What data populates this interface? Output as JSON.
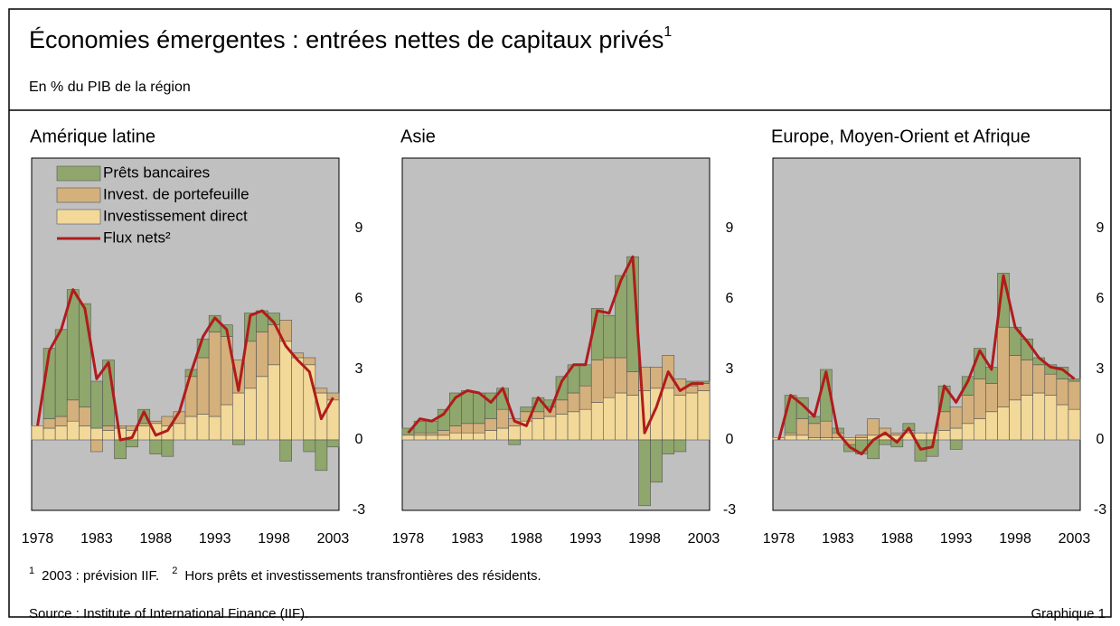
{
  "title": "Économies émergentes : entrées nettes de capitaux privés",
  "title_note": "1",
  "subtitle": "En % du PIB de la région",
  "footnotes": [
    {
      "marker": "1",
      "text": "2003 : prévision IIF."
    },
    {
      "marker": "2",
      "text": "Hors prêts et investissements transfrontières des résidents."
    }
  ],
  "source": "Source : Institute of International Finance (IIF).",
  "figure_label": "Graphique 1",
  "chart_data": [
    {
      "type": "bar",
      "stacked": true,
      "title": "Amérique latine",
      "legend": "upper left",
      "x": [
        1978,
        1979,
        1980,
        1981,
        1982,
        1983,
        1984,
        1985,
        1986,
        1987,
        1988,
        1989,
        1990,
        1991,
        1992,
        1993,
        1994,
        1995,
        1996,
        1997,
        1998,
        1999,
        2000,
        2001,
        2002,
        2003
      ],
      "xlim": [
        1977.5,
        2003.5
      ],
      "xticks": [
        1978,
        1983,
        1988,
        1993,
        1998,
        2003
      ],
      "ylim": [
        -3,
        12
      ],
      "yticks": [
        -3,
        0,
        3,
        6,
        9
      ],
      "series": [
        {
          "name": "Prêts bancaires",
          "color": "#8fa66c",
          "values": [
            0,
            3.0,
            3.7,
            4.7,
            4.4,
            2.0,
            2.8,
            -0.8,
            -0.3,
            0.6,
            -0.6,
            -0.7,
            0.0,
            0.3,
            0.8,
            0.7,
            0.5,
            -0.2,
            1.2,
            0.9,
            0.5,
            -0.9,
            0.0,
            -0.5,
            -1.3,
            -0.3
          ]
        },
        {
          "name": "Invest. de portefeuille",
          "color": "#d4b07c",
          "values": [
            0,
            0.4,
            0.4,
            0.9,
            0.8,
            -0.5,
            0.2,
            0.1,
            0.2,
            0.1,
            0.1,
            0.4,
            0.5,
            1.7,
            2.4,
            3.6,
            2.9,
            1.4,
            2.0,
            1.9,
            1.7,
            0.9,
            0.2,
            0.3,
            0.2,
            0.3
          ]
        },
        {
          "name": "Investissement direct",
          "color": "#f2d99a",
          "values": [
            0.6,
            0.5,
            0.6,
            0.8,
            0.6,
            0.5,
            0.4,
            0.5,
            0.4,
            0.6,
            0.7,
            0.6,
            0.7,
            1.0,
            1.1,
            1.0,
            1.5,
            2.0,
            2.2,
            2.7,
            3.2,
            4.2,
            3.5,
            3.2,
            2.0,
            1.7
          ]
        },
        {
          "name": "Flux nets²",
          "type": "line",
          "color": "#b01c1c",
          "values": [
            0.6,
            3.8,
            4.7,
            6.4,
            5.6,
            2.6,
            3.3,
            0.0,
            0.1,
            1.2,
            0.2,
            0.4,
            1.2,
            2.9,
            4.4,
            5.2,
            4.7,
            2.1,
            5.3,
            5.5,
            5.0,
            4.0,
            3.4,
            2.9,
            0.9,
            1.8
          ]
        }
      ]
    },
    {
      "type": "bar",
      "stacked": true,
      "title": "Asie",
      "x": [
        1978,
        1979,
        1980,
        1981,
        1982,
        1983,
        1984,
        1985,
        1986,
        1987,
        1988,
        1989,
        1990,
        1991,
        1992,
        1993,
        1994,
        1995,
        1996,
        1997,
        1998,
        1999,
        2000,
        2001,
        2002,
        2003
      ],
      "xlim": [
        1977.5,
        2003.5
      ],
      "xticks": [
        1978,
        1983,
        1988,
        1993,
        1998,
        2003
      ],
      "ylim": [
        -3,
        12
      ],
      "yticks": [
        -3,
        0,
        3,
        6,
        9
      ],
      "series": [
        {
          "color": "#8fa66c",
          "values": [
            0.3,
            0.5,
            0.5,
            0.9,
            1.4,
            1.4,
            1.3,
            1.1,
            0.9,
            -0.2,
            0.2,
            0.6,
            0.3,
            1.0,
            1.2,
            0.9,
            2.2,
            1.8,
            3.5,
            4.9,
            -2.8,
            -1.8,
            -0.6,
            -0.5,
            0.2,
            0.1
          ]
        },
        {
          "color": "#d4b07c",
          "values": [
            0,
            0.1,
            0.1,
            0.2,
            0.3,
            0.4,
            0.4,
            0.5,
            0.8,
            0.3,
            0.4,
            0.3,
            0.4,
            0.6,
            0.8,
            1.0,
            1.8,
            1.7,
            1.5,
            1.0,
            1.0,
            0.9,
            1.4,
            0.7,
            0.3,
            0.3
          ]
        },
        {
          "color": "#f2d99a",
          "values": [
            0.2,
            0.2,
            0.2,
            0.2,
            0.3,
            0.3,
            0.3,
            0.4,
            0.5,
            0.6,
            0.8,
            0.9,
            1.0,
            1.1,
            1.2,
            1.3,
            1.6,
            1.8,
            2.0,
            1.9,
            2.1,
            2.2,
            2.2,
            1.9,
            2.0,
            2.1
          ]
        },
        {
          "type": "line",
          "color": "#b01c1c",
          "values": [
            0.3,
            0.9,
            0.8,
            1.1,
            1.8,
            2.1,
            2.0,
            1.6,
            2.2,
            0.8,
            0.6,
            1.8,
            1.2,
            2.5,
            3.2,
            3.2,
            5.5,
            5.4,
            6.8,
            7.8,
            0.3,
            1.4,
            2.9,
            2.1,
            2.4,
            2.4
          ]
        }
      ]
    },
    {
      "type": "bar",
      "stacked": true,
      "title": "Europe, Moyen-Orient et Afrique",
      "x": [
        1978,
        1979,
        1980,
        1981,
        1982,
        1983,
        1984,
        1985,
        1986,
        1987,
        1988,
        1989,
        1990,
        1991,
        1992,
        1993,
        1994,
        1995,
        1996,
        1997,
        1998,
        1999,
        2000,
        2001,
        2002,
        2003
      ],
      "xlim": [
        1977.5,
        2003.5
      ],
      "xticks": [
        1978,
        1983,
        1988,
        1993,
        1998,
        2003
      ],
      "ylim": [
        -3,
        12
      ],
      "yticks": [
        -3,
        0,
        3,
        6,
        9
      ],
      "series": [
        {
          "color": "#8fa66c",
          "values": [
            0,
            1.6,
            0.9,
            0.3,
            2.2,
            0.2,
            -0.3,
            -0.6,
            -0.8,
            -0.2,
            -0.3,
            0.3,
            -0.9,
            -0.7,
            1.1,
            -0.4,
            0.8,
            1.3,
            0.7,
            2.3,
            1.2,
            0.9,
            0.3,
            0.4,
            0.5,
            0.1
          ]
        },
        {
          "color": "#d4b07c",
          "values": [
            0,
            0.1,
            0.7,
            0.6,
            0.7,
            0.2,
            -0.2,
            0.1,
            0.7,
            0.3,
            0.1,
            0.1,
            0.0,
            0.0,
            0.8,
            0.9,
            1.2,
            1.7,
            1.2,
            3.4,
            1.9,
            1.5,
            1.2,
            0.9,
            1.1,
            1.2
          ]
        },
        {
          "color": "#f2d99a",
          "values": [
            0.1,
            0.2,
            0.2,
            0.1,
            0.1,
            0.1,
            0.1,
            0.1,
            0.2,
            0.2,
            0.2,
            0.3,
            0.3,
            0.3,
            0.4,
            0.5,
            0.7,
            0.9,
            1.2,
            1.4,
            1.7,
            1.9,
            2.0,
            1.9,
            1.5,
            1.3
          ]
        },
        {
          "type": "line",
          "color": "#b01c1c",
          "values": [
            0.0,
            1.9,
            1.5,
            1.0,
            2.9,
            0.3,
            -0.3,
            -0.6,
            0.0,
            0.3,
            -0.1,
            0.5,
            -0.4,
            -0.3,
            2.3,
            1.6,
            2.5,
            3.8,
            3.0,
            7.0,
            4.8,
            4.2,
            3.5,
            3.1,
            3.0,
            2.6
          ]
        }
      ]
    }
  ]
}
